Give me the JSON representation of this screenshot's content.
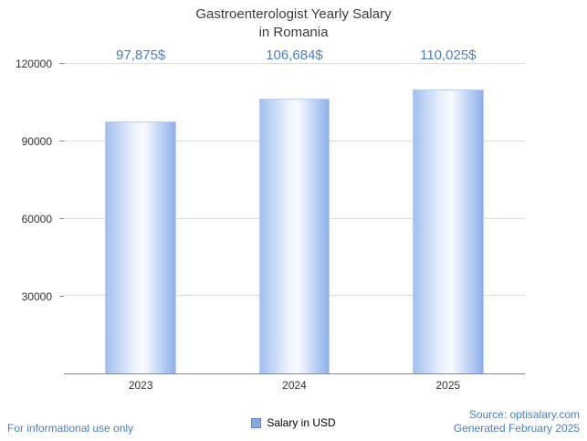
{
  "title": {
    "line1": "Gastroenterologist Yearly Salary",
    "line2": "in Romania"
  },
  "chart_data": {
    "type": "bar",
    "title": "Gastroenterologist Yearly Salary in Romania",
    "categories": [
      "2023",
      "2024",
      "2025"
    ],
    "values": [
      97875,
      106684,
      110025
    ],
    "value_labels": [
      "97,875$",
      "106,684$",
      "110,025$"
    ],
    "series_name": "Salary in USD",
    "xlabel": "",
    "ylabel": "",
    "ylim": [
      0,
      120000
    ],
    "yticks": [
      30000,
      60000,
      90000,
      120000
    ],
    "grid": true,
    "legend_position": "bottom"
  },
  "legend": {
    "label": "Salary in USD"
  },
  "footer": {
    "disclaimer": "For informational use only",
    "source": "Source: optisalary.com",
    "generated": "Generated February 2025"
  },
  "colors": {
    "accent_blue": "#4a7ec0",
    "bar_light": "#f8fbff",
    "bar_dark": "#8db0ea",
    "gridline": "#dcdcdc",
    "axis": "#8a8a8a"
  }
}
